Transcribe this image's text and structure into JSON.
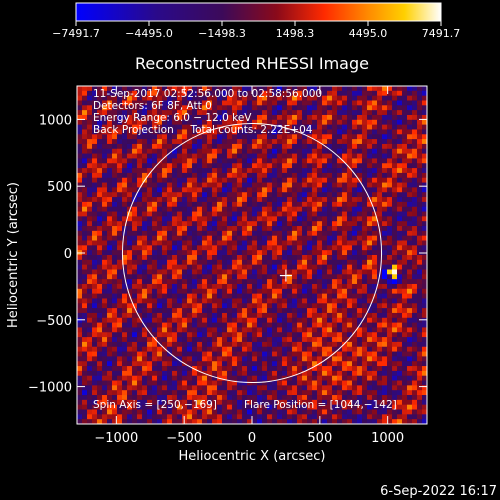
{
  "chart_data": {
    "type": "heatmap",
    "title": "Reconstructed RHESSI Image",
    "xlabel": "Heliocentric X (arcsec)",
    "ylabel": "Heliocentric Y (arcsec)",
    "xlim": [
      -1290,
      1290
    ],
    "ylim": [
      -1280,
      1250
    ],
    "x_ticks": [
      -1000,
      -500,
      0,
      500,
      1000
    ],
    "x_tick_labels": [
      "−1000",
      "−500",
      "0",
      "500",
      "1000"
    ],
    "y_ticks": [
      -1000,
      -500,
      0,
      500,
      1000
    ],
    "y_tick_labels": [
      "−1000",
      "−500",
      "0",
      "500",
      "1000"
    ],
    "colorbar": {
      "tick_values": [
        -7491.7,
        -4495.0,
        -1498.3,
        1498.3,
        4495.0,
        7491.7
      ],
      "tick_labels": [
        "−7491.7",
        "−4495.0",
        "−1498.3",
        "1498.3",
        "4495.0",
        "7491.7"
      ],
      "colormap": "blue-purple-red-yellow-white"
    },
    "annotations": [
      "11-Sep-2017 02:52:56.000 to 02:58:56.000",
      "Detectors: 6F 8F, Att 0",
      "Energy Range: 6.0 − 12.0 keV",
      "Back Projection     Total counts: 2.22E+04"
    ],
    "footer_left": "Spin Axis = [250,−169]",
    "footer_right": "Flare Position = [1044,−142]",
    "solar_limb": {
      "center": [
        0,
        0
      ],
      "radius_arcsec": 955
    },
    "spin_axis": [
      250,
      -169
    ],
    "flare_position": [
      1044,
      -142
    ],
    "grid": false
  },
  "timestamp": "6-Sep-2022 16:17",
  "colors": {
    "background": "#000000",
    "foreground": "#ffffff",
    "colormap_stops": [
      "#0000ff",
      "#2a0a8a",
      "#3c0a5a",
      "#8a0a1a",
      "#ff2a00",
      "#ff8a00",
      "#ffd000",
      "#ffffff"
    ]
  }
}
